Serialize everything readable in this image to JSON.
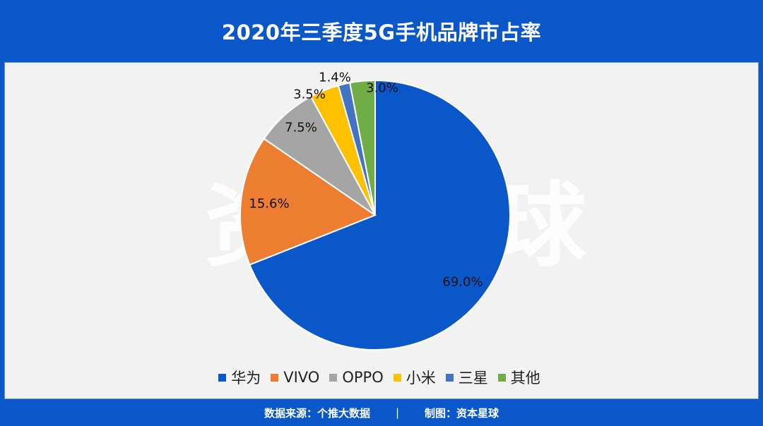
{
  "header": {
    "title": "2020年三季度5G手机品牌市占率"
  },
  "watermark": {
    "left_glyph": "资",
    "right_glyph": "球"
  },
  "chart_data": {
    "type": "pie",
    "title": "2020年三季度5G手机品牌市占率",
    "start_angle_deg": 0,
    "direction": "clockwise",
    "legend_position": "bottom",
    "slices": [
      {
        "name": "华为",
        "value": 69.0,
        "label": "69.0%",
        "color": "#0a57c9"
      },
      {
        "name": "VIVO",
        "value": 15.6,
        "label": "15.6%",
        "color": "#ed7d31"
      },
      {
        "name": "OPPO",
        "value": 7.5,
        "label": "7.5%",
        "color": "#a5a5a5"
      },
      {
        "name": "小米",
        "value": 3.5,
        "label": "3.5%",
        "color": "#ffc000"
      },
      {
        "name": "三星",
        "value": 1.4,
        "label": "1.4%",
        "color": "#4472c4"
      },
      {
        "name": "其他",
        "value": 3.0,
        "label": "3.0%",
        "color": "#70ad47"
      }
    ]
  },
  "footer": {
    "source": "数据来源：个推大数据",
    "separator": "|",
    "credit": "制图：资本星球"
  }
}
